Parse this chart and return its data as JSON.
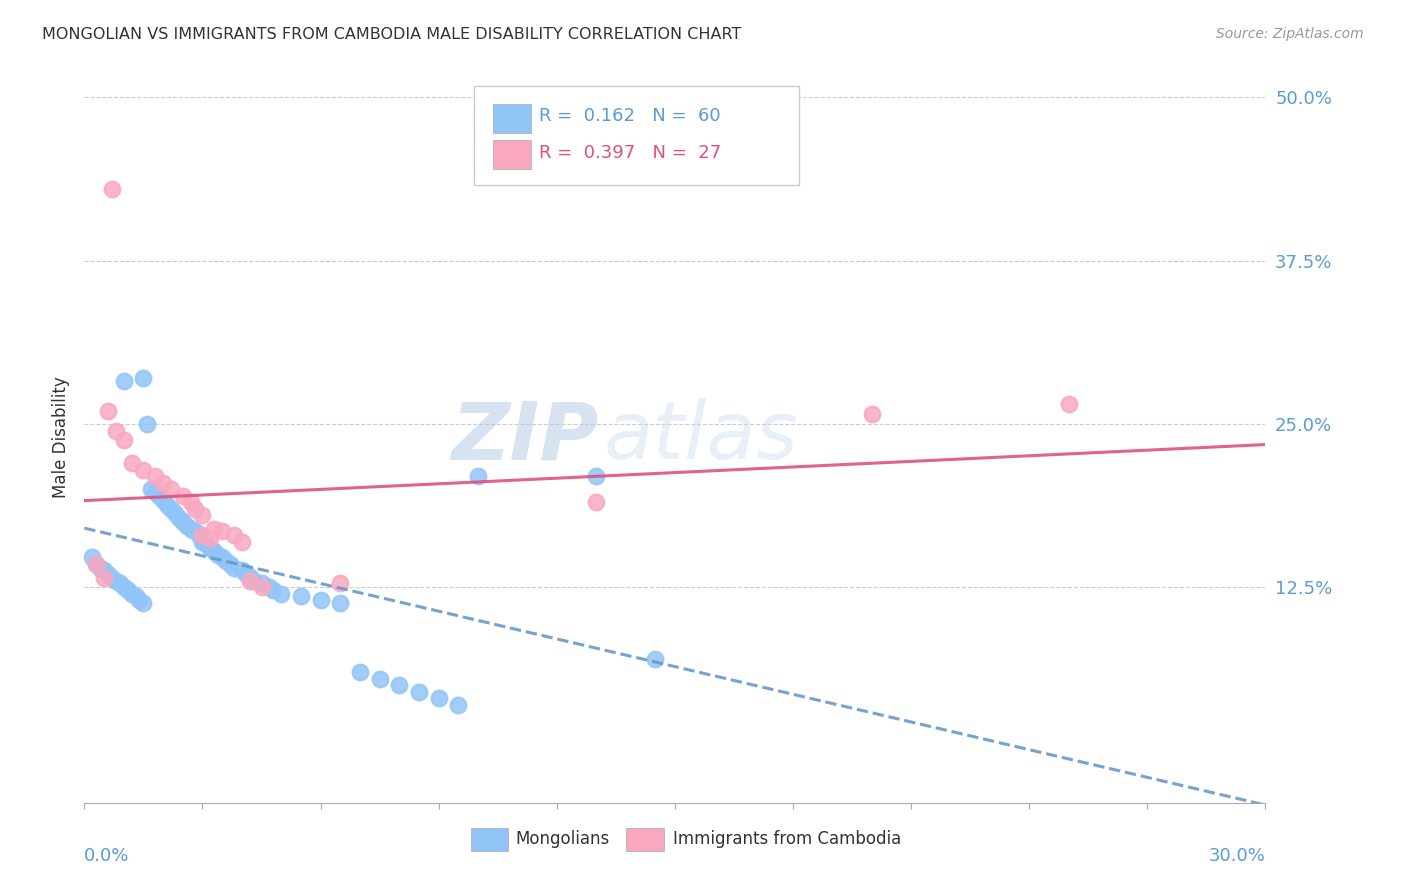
{
  "title": "MONGOLIAN VS IMMIGRANTS FROM CAMBODIA MALE DISABILITY CORRELATION CHART",
  "source": "Source: ZipAtlas.com",
  "ylabel": "Male Disability",
  "watermark_zip": "ZIP",
  "watermark_atlas": "atlas",
  "xmin": 0.0,
  "xmax": 0.3,
  "ymin": -0.04,
  "ymax": 0.52,
  "mongolian_color": "#92C5F7",
  "cambodia_color": "#F9A8C0",
  "trendline1_color": "#6699CC",
  "trendline2_color": "#E05080",
  "grid_color": "#CCCCCC",
  "ytick_color": "#5B9BD5",
  "xtick_color": "#5B9BD5",
  "mon_x": [
    0.002,
    0.003,
    0.004,
    0.005,
    0.006,
    0.007,
    0.008,
    0.009,
    0.01,
    0.01,
    0.011,
    0.012,
    0.013,
    0.014,
    0.015,
    0.015,
    0.016,
    0.017,
    0.018,
    0.019,
    0.02,
    0.021,
    0.022,
    0.023,
    0.024,
    0.025,
    0.026,
    0.027,
    0.028,
    0.029,
    0.03,
    0.03,
    0.031,
    0.032,
    0.033,
    0.034,
    0.035,
    0.036,
    0.037,
    0.038,
    0.04,
    0.041,
    0.042,
    0.043,
    0.045,
    0.047,
    0.048,
    0.05,
    0.055,
    0.06,
    0.065,
    0.07,
    0.075,
    0.08,
    0.085,
    0.09,
    0.095,
    0.1,
    0.13,
    0.145
  ],
  "mon_y": [
    0.148,
    0.143,
    0.14,
    0.138,
    0.135,
    0.132,
    0.13,
    0.128,
    0.125,
    0.283,
    0.123,
    0.12,
    0.118,
    0.115,
    0.113,
    0.285,
    0.25,
    0.2,
    0.198,
    0.195,
    0.192,
    0.188,
    0.185,
    0.182,
    0.178,
    0.175,
    0.172,
    0.17,
    0.168,
    0.165,
    0.163,
    0.16,
    0.158,
    0.155,
    0.153,
    0.15,
    0.148,
    0.145,
    0.143,
    0.14,
    0.138,
    0.135,
    0.133,
    0.13,
    0.128,
    0.125,
    0.123,
    0.12,
    0.118,
    0.115,
    0.113,
    0.06,
    0.055,
    0.05,
    0.045,
    0.04,
    0.035,
    0.21,
    0.21,
    0.07
  ],
  "cam_x": [
    0.003,
    0.005,
    0.006,
    0.007,
    0.008,
    0.01,
    0.012,
    0.015,
    0.018,
    0.02,
    0.022,
    0.025,
    0.027,
    0.028,
    0.03,
    0.03,
    0.032,
    0.033,
    0.035,
    0.038,
    0.04,
    0.042,
    0.045,
    0.065,
    0.13,
    0.2,
    0.25
  ],
  "cam_y": [
    0.143,
    0.132,
    0.26,
    0.43,
    0.245,
    0.238,
    0.22,
    0.215,
    0.21,
    0.205,
    0.2,
    0.195,
    0.19,
    0.185,
    0.18,
    0.165,
    0.163,
    0.17,
    0.168,
    0.165,
    0.16,
    0.13,
    0.125,
    0.128,
    0.19,
    0.258,
    0.265
  ],
  "legend_r1_text": "R =  0.162   N =  60",
  "legend_r2_text": "R =  0.397   N =  27",
  "legend_r1_color": "#5B9BD5",
  "legend_r2_color": "#E05080",
  "ytick_vals": [
    0.0,
    0.125,
    0.25,
    0.375,
    0.5
  ],
  "ytick_labels": [
    "",
    "12.5%",
    "25.0%",
    "37.5%",
    "50.0%"
  ],
  "grid_yticks": [
    0.125,
    0.25,
    0.375,
    0.5
  ]
}
